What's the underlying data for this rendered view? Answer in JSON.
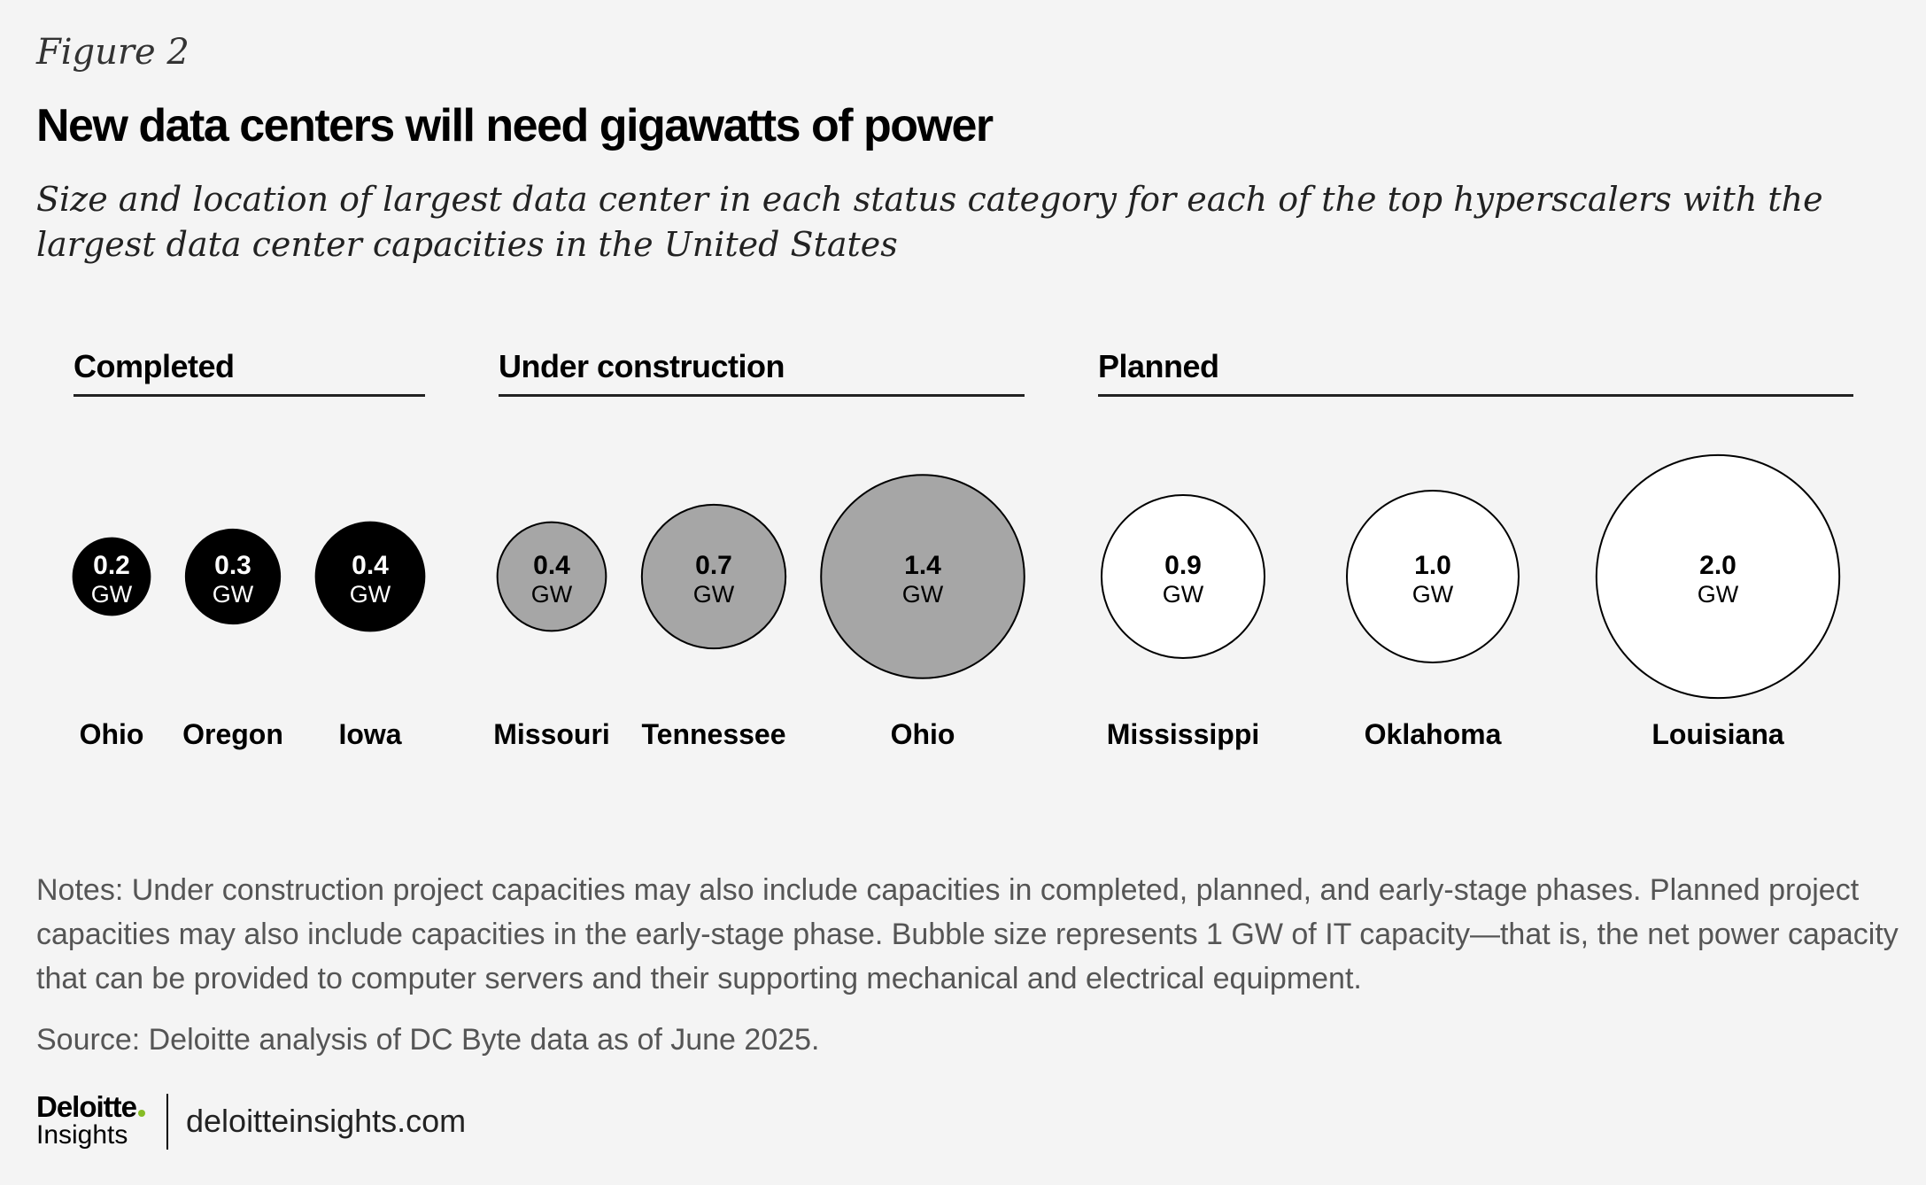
{
  "figure_label": "Figure 2",
  "chart_data": {
    "type": "bubble",
    "title": "New data centers will need gigawatts of power",
    "subtitle": "Size and location of largest data center in each status category for each of the top hyperscalers with the largest data center capacities in the United States",
    "unit": "GW",
    "groups": [
      {
        "name": "Completed",
        "color": "#000000",
        "text_color": "#ffffff",
        "items": [
          {
            "label": "Ohio",
            "value": 0.2,
            "display": "0.2"
          },
          {
            "label": "Oregon",
            "value": 0.3,
            "display": "0.3"
          },
          {
            "label": "Iowa",
            "value": 0.4,
            "display": "0.4"
          }
        ]
      },
      {
        "name": "Under construction",
        "color": "#a6a6a6",
        "text_color": "#000000",
        "items": [
          {
            "label": "Missouri",
            "value": 0.4,
            "display": "0.4"
          },
          {
            "label": "Tennessee",
            "value": 0.7,
            "display": "0.7"
          },
          {
            "label": "Ohio",
            "value": 1.4,
            "display": "1.4"
          }
        ]
      },
      {
        "name": "Planned",
        "color": "#ffffff",
        "text_color": "#000000",
        "items": [
          {
            "label": "Mississippi",
            "value": 0.9,
            "display": "0.9"
          },
          {
            "label": "Oklahoma",
            "value": 1.0,
            "display": "1.0"
          },
          {
            "label": "Louisiana",
            "value": 2.0,
            "display": "2.0"
          }
        ]
      }
    ]
  },
  "notes": "Notes: Under construction project capacities may also include capacities in completed, planned, and early-stage phases. Planned project capacities may also include capacities in the early-stage phase. Bubble size represents 1 GW of IT capacity—that is, the net power capacity that can be provided to computer servers and their supporting mechanical and electrical equipment.",
  "source": "Source: Deloitte analysis of DC Byte data as of June 2025.",
  "footer": {
    "logo_name": "Deloitte",
    "logo_sub": "Insights",
    "site": "deloitteinsights.com"
  }
}
